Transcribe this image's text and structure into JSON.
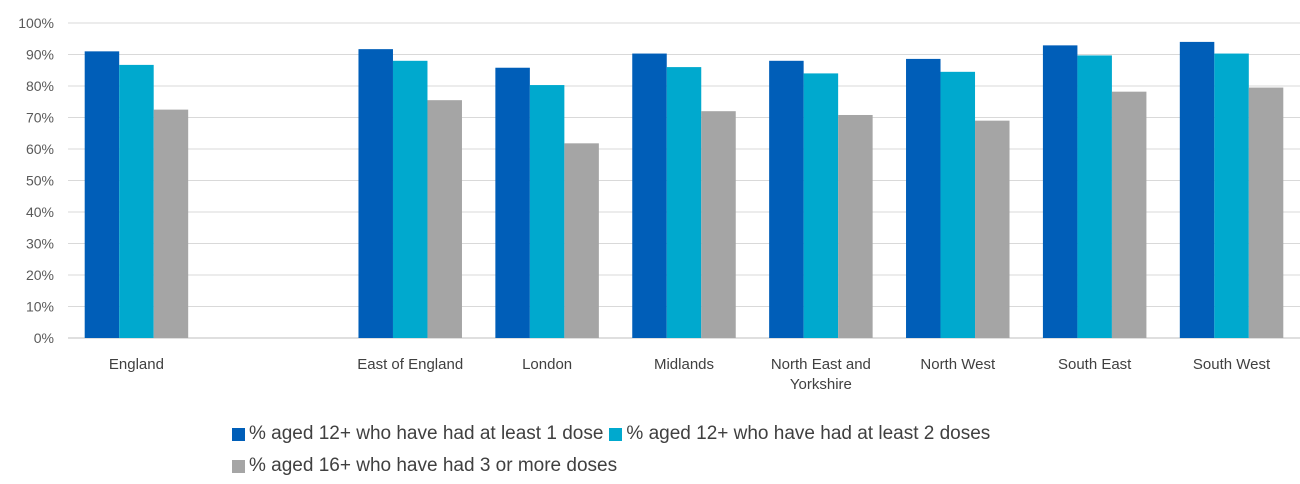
{
  "chart_data": {
    "type": "bar",
    "categories": [
      "England",
      "",
      "East of England",
      "London",
      "Midlands",
      "North East and Yorkshire",
      "North West",
      "South East",
      "South West"
    ],
    "category_label_lines": [
      [
        "England"
      ],
      [
        ""
      ],
      [
        "East of England"
      ],
      [
        "London"
      ],
      [
        "Midlands"
      ],
      [
        "North East and",
        "Yorkshire"
      ],
      [
        "North West"
      ],
      [
        "South East"
      ],
      [
        "South West"
      ]
    ],
    "series": [
      {
        "name": "% aged 12+ who have had at least 1 dose",
        "color": "#005EB8",
        "values": [
          91.0,
          null,
          91.7,
          85.8,
          90.3,
          88.0,
          88.6,
          92.9,
          94.0
        ]
      },
      {
        "name": "% aged 12+ who have had at least 2 doses",
        "color": "#00A9CE",
        "values": [
          86.7,
          null,
          88.0,
          80.3,
          86.0,
          84.0,
          84.5,
          89.7,
          90.3
        ]
      },
      {
        "name": "% aged 16+ who have had 3 or more doses",
        "color": "#A5A5A5",
        "values": [
          72.5,
          null,
          75.5,
          61.8,
          72.0,
          70.8,
          69.0,
          78.2,
          79.5
        ]
      }
    ],
    "ylim": [
      0,
      100
    ],
    "yticks": [
      "0%",
      "10%",
      "20%",
      "30%",
      "40%",
      "50%",
      "60%",
      "70%",
      "80%",
      "90%",
      "100%"
    ],
    "grid": true,
    "legend_position": "bottom",
    "title": "",
    "xlabel": "",
    "ylabel": ""
  }
}
